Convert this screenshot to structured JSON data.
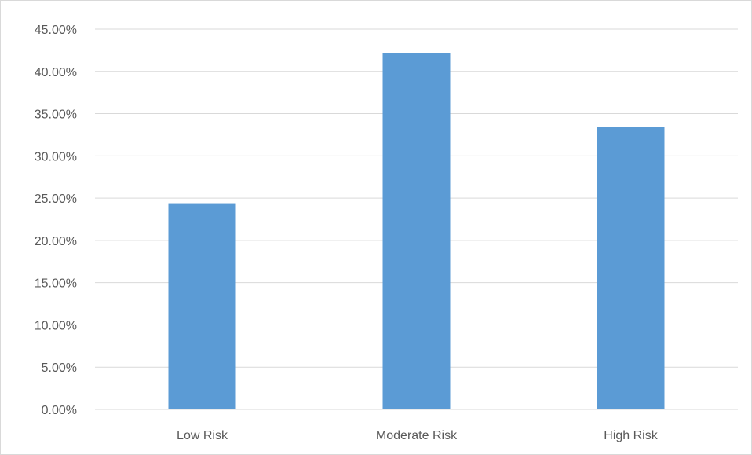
{
  "chart_data": {
    "type": "bar",
    "categories": [
      "Low Risk",
      "Moderate Risk",
      "High Risk"
    ],
    "values": [
      24.4,
      42.2,
      33.4
    ],
    "y_tick_labels": [
      "0.00%",
      "5.00%",
      "10.00%",
      "15.00%",
      "20.00%",
      "25.00%",
      "30.00%",
      "35.00%",
      "40.00%",
      "45.00%"
    ],
    "ylim": [
      0,
      45
    ],
    "ytick_step": 5,
    "grid": true,
    "legend": "none",
    "colors": {
      "bar": "#5b9bd5",
      "grid": "#d9d9d9",
      "tick_text": "#595959"
    }
  }
}
